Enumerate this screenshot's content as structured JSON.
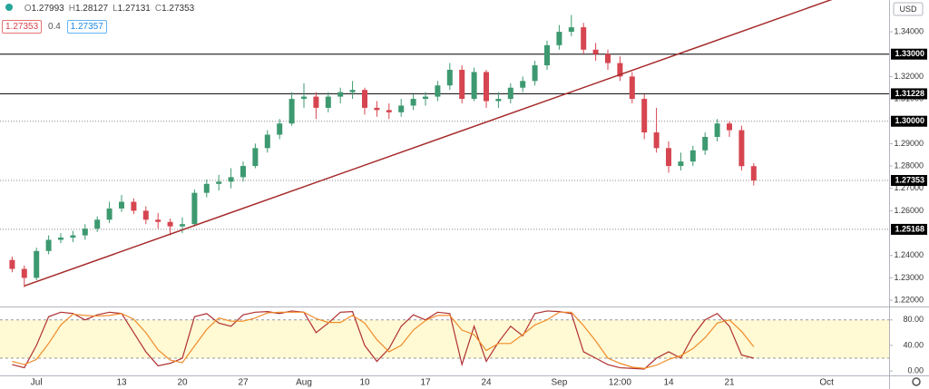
{
  "header": {
    "ohlc": [
      {
        "label": "O",
        "value": 1.27993
      },
      {
        "label": "H",
        "value": 1.28127
      },
      {
        "label": "L",
        "value": 1.27131
      },
      {
        "label": "C",
        "value": 1.27353
      }
    ],
    "bid": 1.27353,
    "spread": 0.4,
    "ask": 1.27357,
    "currency": "USD"
  },
  "chart_data": [
    {
      "type": "candlestick",
      "grid": false,
      "categories": [
        null,
        null,
        "Jul",
        null,
        null,
        null,
        null,
        null,
        null,
        "13",
        null,
        null,
        null,
        null,
        "20",
        null,
        null,
        null,
        null,
        "27",
        null,
        null,
        null,
        null,
        "Aug",
        null,
        null,
        null,
        null,
        "10",
        null,
        null,
        null,
        null,
        "17",
        null,
        null,
        null,
        null,
        "24",
        null,
        null,
        null,
        null,
        null,
        "Sep",
        null,
        null,
        null,
        null,
        "12:00",
        null,
        null,
        null,
        "14",
        null,
        null,
        null,
        null,
        "21",
        null,
        null,
        null,
        null,
        null,
        null,
        null,
        "Oct"
      ],
      "open": [
        1.238,
        1.234,
        1.23,
        1.242,
        1.247,
        1.248,
        1.249,
        1.252,
        1.256,
        1.261,
        1.264,
        1.26,
        1.256,
        1.255,
        1.253,
        1.254,
        1.268,
        1.272,
        1.273,
        1.275,
        1.28,
        1.288,
        1.294,
        1.299,
        1.31,
        1.311,
        1.306,
        1.311,
        1.313,
        1.314,
        1.306,
        1.305,
        1.304,
        1.307,
        1.31,
        1.311,
        1.316,
        1.323,
        1.31,
        1.322,
        1.309,
        1.31,
        1.315,
        1.318,
        1.325,
        1.334,
        1.34,
        1.342,
        1.332,
        1.33,
        1.326,
        1.32,
        1.31,
        1.295,
        1.288,
        1.28,
        1.282,
        1.287,
        1.293,
        1.299,
        1.296,
        1.27993,
        null,
        null,
        null,
        null,
        null,
        null
      ],
      "high": [
        1.2395,
        1.2355,
        1.2435,
        1.249,
        1.25,
        1.251,
        1.254,
        1.2575,
        1.264,
        1.267,
        1.2655,
        1.262,
        1.259,
        1.2565,
        1.257,
        1.2695,
        1.274,
        1.276,
        1.279,
        1.282,
        1.29,
        1.296,
        1.301,
        1.313,
        1.317,
        1.313,
        1.313,
        1.315,
        1.318,
        1.315,
        1.309,
        1.308,
        1.31,
        1.312,
        1.313,
        1.318,
        1.326,
        1.325,
        1.324,
        1.323,
        1.313,
        1.317,
        1.32,
        1.327,
        1.336,
        1.343,
        1.3475,
        1.344,
        1.335,
        1.332,
        1.329,
        1.322,
        1.312,
        1.306,
        1.291,
        1.286,
        1.289,
        1.295,
        1.301,
        1.3,
        1.298,
        1.28127,
        null,
        null,
        null,
        null,
        null,
        null
      ],
      "low": [
        1.2325,
        1.2258,
        1.229,
        1.2405,
        1.2455,
        1.246,
        1.247,
        1.2505,
        1.2545,
        1.2595,
        1.2585,
        1.254,
        1.252,
        1.249,
        1.25,
        1.253,
        1.266,
        1.269,
        1.27,
        1.273,
        1.279,
        1.286,
        1.292,
        1.298,
        1.306,
        1.301,
        1.304,
        1.308,
        1.31,
        1.303,
        1.302,
        1.301,
        1.302,
        1.305,
        1.307,
        1.309,
        1.314,
        1.308,
        1.309,
        1.306,
        1.306,
        1.308,
        1.313,
        1.316,
        1.323,
        1.332,
        1.338,
        1.33,
        1.327,
        1.323,
        1.318,
        1.308,
        1.292,
        1.286,
        1.277,
        1.278,
        1.28,
        1.285,
        1.291,
        1.293,
        1.278,
        1.27131,
        null,
        null,
        null,
        null,
        null,
        null
      ],
      "close": [
        1.234,
        1.23,
        1.242,
        1.247,
        1.248,
        1.249,
        1.252,
        1.256,
        1.261,
        1.264,
        1.26,
        1.256,
        1.255,
        1.253,
        1.254,
        1.268,
        1.272,
        1.273,
        1.275,
        1.28,
        1.288,
        1.294,
        1.299,
        1.31,
        1.311,
        1.306,
        1.311,
        1.313,
        1.314,
        1.306,
        1.305,
        1.304,
        1.307,
        1.31,
        1.311,
        1.316,
        1.323,
        1.31,
        1.322,
        1.309,
        1.31,
        1.315,
        1.318,
        1.325,
        1.334,
        1.34,
        1.342,
        1.332,
        1.33,
        1.326,
        1.32,
        1.31,
        1.295,
        1.288,
        1.28,
        1.282,
        1.287,
        1.293,
        1.299,
        1.296,
        1.27993,
        1.27353,
        null,
        null,
        null,
        null,
        null,
        null
      ],
      "up_color": "#3d9970",
      "down_color": "#d64550",
      "ylim": [
        1.2172,
        1.3542
      ],
      "yticks": [
        {
          "value": 1.34,
          "label": "1.34000"
        },
        {
          "value": 1.32,
          "label": "1.32000"
        },
        {
          "value": 1.31,
          "label": "1.31000"
        },
        {
          "value": 1.29,
          "label": "1.29000"
        },
        {
          "value": 1.28,
          "label": "1.28000"
        },
        {
          "value": 1.27,
          "label": "1.27000"
        },
        {
          "value": 1.26,
          "label": "1.26000"
        },
        {
          "value": 1.24,
          "label": "1.24000"
        },
        {
          "value": 1.23,
          "label": "1.23000"
        },
        {
          "value": 1.22,
          "label": "1.22000"
        }
      ],
      "lines": [
        {
          "value": 1.33,
          "label": "1.33000",
          "style": "solid"
        },
        {
          "value": 1.31228,
          "label": "1.31228",
          "style": "solid"
        },
        {
          "value": 1.3,
          "label": "1.30000",
          "style": "dotted"
        },
        {
          "value": 1.27353,
          "label": "1.27353",
          "style": "dotted"
        },
        {
          "value": 1.25168,
          "label": "1.25168",
          "style": "dotted"
        }
      ],
      "trendline": {
        "x": [
          1,
          67
        ],
        "y": [
          1.2264,
          1.3536
        ],
        "color": "#a52a2a"
      }
    },
    {
      "type": "line",
      "series": [
        {
          "color": "#b03030",
          "values": [
            10,
            5,
            40,
            85,
            92,
            90,
            80,
            88,
            92,
            90,
            60,
            30,
            8,
            12,
            20,
            85,
            90,
            75,
            70,
            88,
            92,
            93,
            90,
            94,
            92,
            60,
            75,
            92,
            93,
            40,
            15,
            35,
            70,
            88,
            80,
            92,
            90,
            10,
            70,
            15,
            45,
            70,
            55,
            90,
            94,
            93,
            90,
            30,
            20,
            10,
            5,
            4,
            3,
            20,
            30,
            20,
            55,
            80,
            90,
            70,
            25,
            20,
            null,
            null,
            null,
            null,
            null,
            null
          ]
        },
        {
          "color": "#f08c28",
          "values": [
            15,
            10,
            18,
            43,
            72,
            89,
            87,
            86,
            87,
            90,
            81,
            60,
            33,
            17,
            13,
            39,
            65,
            83,
            78,
            78,
            83,
            91,
            92,
            92,
            92,
            82,
            76,
            76,
            87,
            75,
            49,
            30,
            40,
            64,
            79,
            87,
            87,
            64,
            57,
            32,
            43,
            43,
            57,
            72,
            80,
            92,
            92,
            71,
            47,
            20,
            12,
            6,
            4,
            9,
            18,
            24,
            35,
            52,
            75,
            80,
            62,
            38,
            null,
            null,
            null,
            null,
            null,
            null
          ]
        }
      ],
      "band": [
        20,
        80
      ],
      "band_color": "rgba(255, 235, 100, 0.28)",
      "ylim": [
        -7,
        101
      ],
      "yticks": [
        {
          "value": 80,
          "label": "80.00"
        },
        {
          "value": 40,
          "label": "40.00"
        },
        {
          "value": 0,
          "label": "0.00"
        }
      ]
    }
  ]
}
